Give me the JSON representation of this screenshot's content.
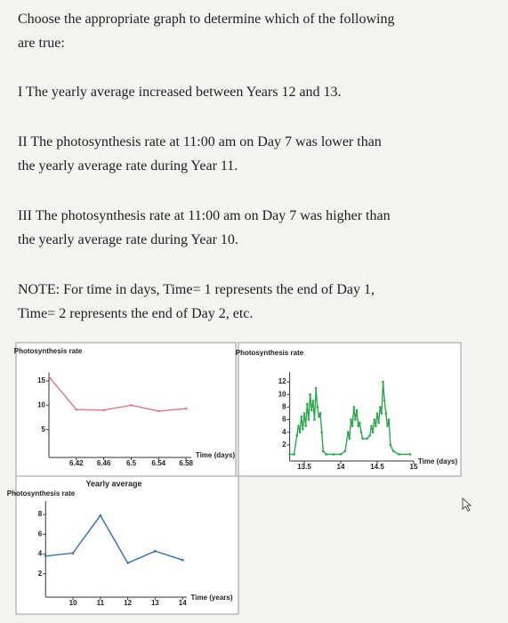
{
  "question": {
    "intro": "Choose the appropriate graph to determine which of the following are true:",
    "statements": [
      "I The yearly average increased between Years 12 and 13.",
      "II The photosynthesis rate at 11:00 am on Day 7 was lower than the yearly average rate during Year 11.",
      "III The photosynthesis rate at 11:00 am on Day 7 was higher than the yearly average rate during Year 10."
    ],
    "note": "NOTE: For time in days, Time= 1 represents the end of Day 1, Time= 2 represents the end of Day 2, etc."
  },
  "charts": [
    {
      "type": "line",
      "ylabel": "Photosynthesis rate",
      "xlabel": "Time (days)",
      "color": "#e0748a",
      "x": [
        6.382,
        6.42,
        6.46,
        6.5,
        6.54,
        6.58
      ],
      "values": [
        15.5,
        9.1,
        9,
        10,
        8.8,
        9.3
      ],
      "xlim": [
        6.38,
        6.62
      ],
      "ylim": [
        0,
        16
      ],
      "xticks": [
        6.42,
        6.46,
        6.5,
        6.54,
        6.58
      ],
      "yticks": [
        5,
        10,
        15
      ]
    },
    {
      "type": "line",
      "ylabel": "Photosynthesis rate",
      "xlabel": "Time (days)",
      "color": "#2aa84a",
      "x": [
        13.3,
        13.36,
        13.4,
        13.42,
        13.44,
        13.46,
        13.48,
        13.5,
        13.52,
        13.54,
        13.56,
        13.58,
        13.6,
        13.62,
        13.64,
        13.66,
        13.68,
        13.7,
        13.72,
        13.74,
        13.76,
        13.8,
        13.9,
        14.0,
        14.06,
        14.1,
        14.12,
        14.14,
        14.16,
        14.18,
        14.2,
        14.22,
        14.24,
        14.26,
        14.28,
        14.3,
        14.36,
        14.4,
        14.42,
        14.44,
        14.46,
        14.48,
        14.5,
        14.52,
        14.54,
        14.56,
        14.58,
        14.6,
        14.62,
        14.64,
        14.66,
        14.68,
        14.72,
        14.8,
        14.95
      ],
      "values": [
        0.5,
        0.5,
        3.5,
        5,
        4,
        6.5,
        4.5,
        7,
        5,
        8.5,
        6,
        10,
        7.5,
        9,
        6,
        11,
        8,
        6.5,
        7,
        4,
        1,
        0.5,
        0.5,
        0.5,
        1,
        4,
        3,
        6,
        5,
        8,
        6,
        7.5,
        5,
        5.5,
        4,
        3,
        3,
        3.5,
        5,
        4,
        6,
        5,
        7,
        5.5,
        8,
        7,
        12,
        9,
        7,
        5,
        6,
        2,
        1,
        0.5,
        0.5
      ],
      "xlim": [
        13.3,
        15.3
      ],
      "ylim": [
        0,
        13
      ],
      "xticks": [
        13.5,
        14,
        14.5,
        15
      ],
      "yticks": [
        2,
        4,
        6,
        8,
        10,
        12
      ]
    },
    {
      "type": "line",
      "title": "Yearly average",
      "ylabel": "Photosynthesis rate",
      "xlabel": "Time (years)",
      "color": "#2b6fb8",
      "x": [
        9,
        10,
        11,
        12,
        13,
        14
      ],
      "values": [
        3.8,
        4.1,
        7.9,
        3.1,
        4.3,
        3.4
      ],
      "xlim": [
        9,
        14.5
      ],
      "ylim": [
        0,
        9
      ],
      "xticks": [
        10,
        11,
        12,
        13,
        14
      ],
      "yticks": [
        2,
        4,
        6,
        8
      ]
    }
  ]
}
